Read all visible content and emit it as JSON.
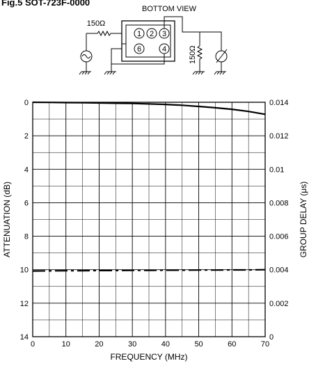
{
  "figure_label": "Fig.5 SOT-723F-0000",
  "circuit": {
    "title": "BOTTOM VIEW",
    "resistor_left": "150Ω",
    "resistor_right": "150Ω",
    "pins": [
      "1",
      "2",
      "3",
      "6",
      "4"
    ]
  },
  "chart_data": {
    "type": "line",
    "xlabel": "FREQUENCY (MHz)",
    "ylabel": "ATTENUATION (dB)",
    "y2label": "GROUP DELAY (μs)",
    "xlim": [
      0,
      70
    ],
    "ylim": [
      0,
      14
    ],
    "y_inverted": true,
    "y2lim": [
      0,
      0.014
    ],
    "x_ticks": [
      "0",
      "10",
      "20",
      "30",
      "40",
      "50",
      "60",
      "70"
    ],
    "y_ticks": [
      "0",
      "2",
      "4",
      "6",
      "8",
      "10",
      "12",
      "14"
    ],
    "y2_ticks": [
      "0",
      "0.002",
      "0.004",
      "0.006",
      "0.008",
      "0.01",
      "0.012",
      "0.014"
    ],
    "grid": true,
    "series": [
      {
        "axis": "left",
        "style": "solid",
        "x": [
          0,
          5,
          10,
          15,
          20,
          25,
          30,
          35,
          40,
          45,
          50,
          55,
          60,
          65,
          70
        ],
        "y": [
          0,
          0.01,
          0.02,
          0.03,
          0.04,
          0.06,
          0.07,
          0.1,
          0.13,
          0.18,
          0.25,
          0.33,
          0.42,
          0.55,
          0.72
        ]
      },
      {
        "axis": "right",
        "style": "dashed",
        "x": [
          0,
          5,
          10,
          15,
          20,
          25,
          30,
          35,
          40,
          45,
          50,
          55,
          60,
          65,
          70
        ],
        "y": [
          0.00392,
          0.00393,
          0.00394,
          0.00394,
          0.00395,
          0.00395,
          0.00396,
          0.00396,
          0.00397,
          0.00397,
          0.00398,
          0.00398,
          0.00399,
          0.00399,
          0.004
        ]
      }
    ]
  }
}
